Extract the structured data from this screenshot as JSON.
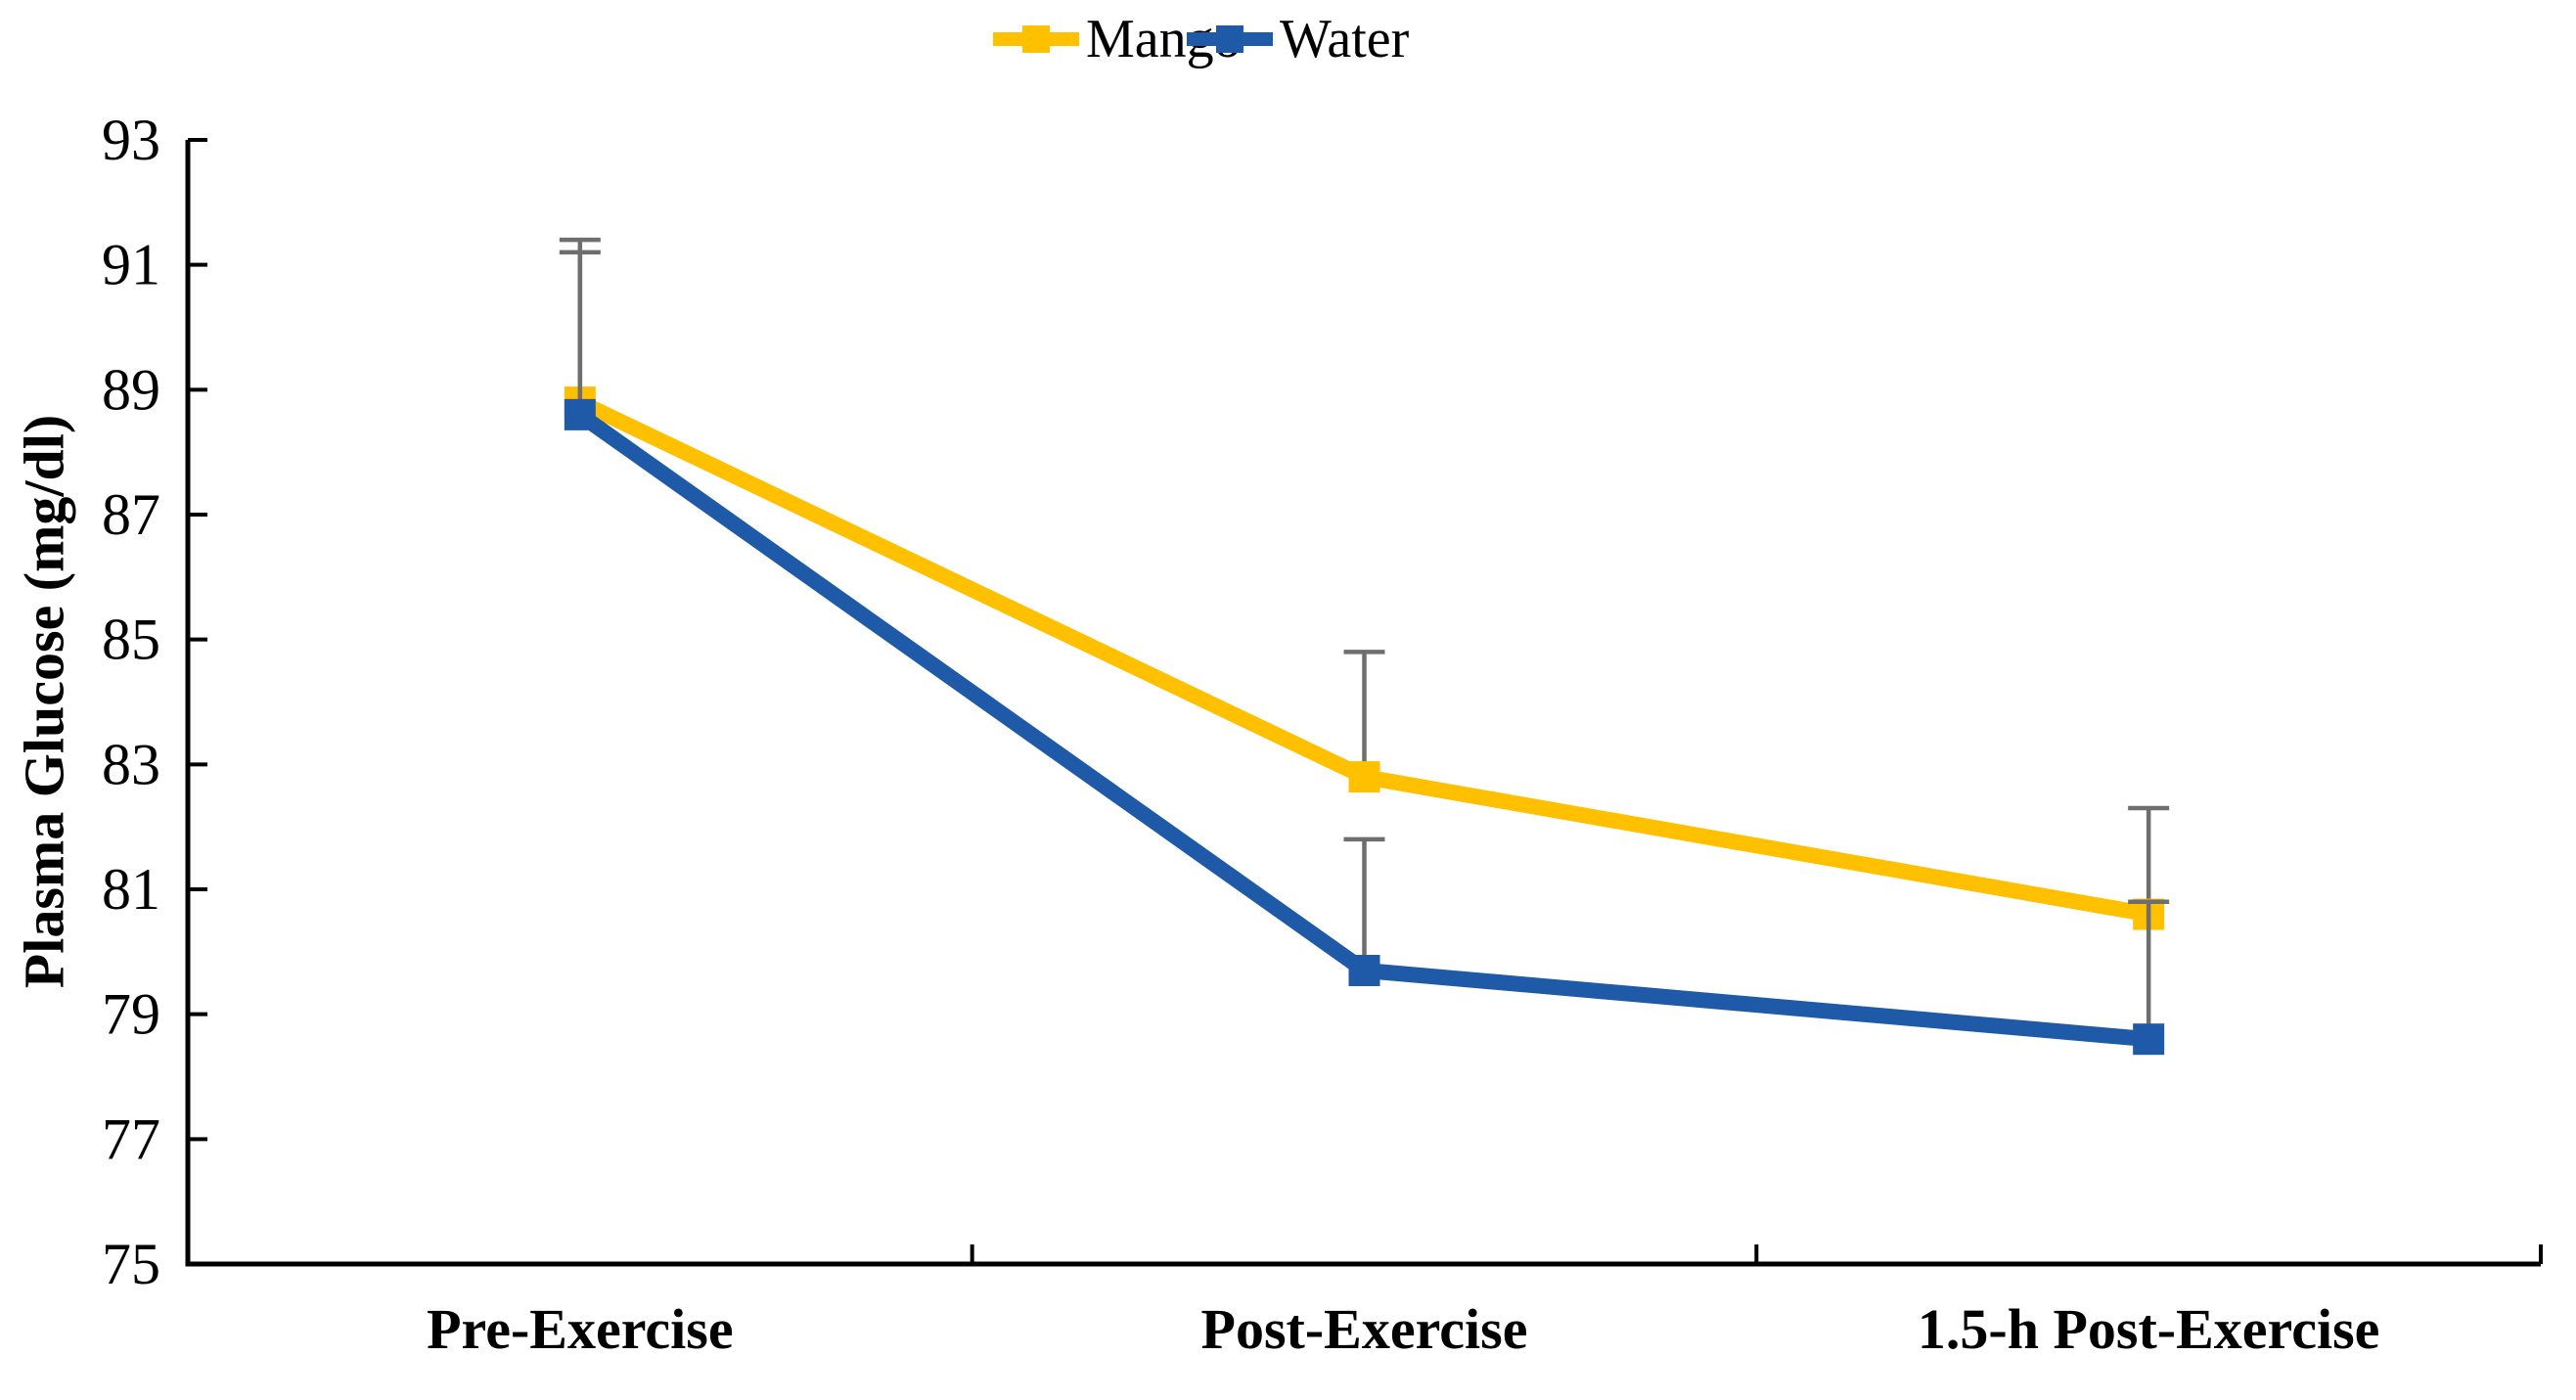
{
  "figure": {
    "background": "#ffffff"
  },
  "chart_data": {
    "type": "line",
    "title": "",
    "xlabel": "",
    "ylabel": "Plasma Glucose (mg/dl)",
    "ylim": [
      75,
      93
    ],
    "ytick_step": 2,
    "grid": false,
    "legend_position": "top-center",
    "marker": "square",
    "error_bars": "plus-only",
    "error_bar_color": "#6E6E6E",
    "axis_color": "#000000",
    "categories": [
      "Pre-Exercise",
      "Post-Exercise",
      "1.5-h Post-Exercise"
    ],
    "series": [
      {
        "name": "Mango",
        "color": "#FFC000",
        "values": [
          88.8,
          82.8,
          80.6
        ],
        "error_plus": [
          2.6,
          2.0,
          1.7
        ]
      },
      {
        "name": "Water",
        "color": "#1E5AA8",
        "values": [
          88.6,
          79.7,
          78.6
        ],
        "error_plus": [
          2.6,
          2.1,
          2.2
        ]
      }
    ]
  }
}
